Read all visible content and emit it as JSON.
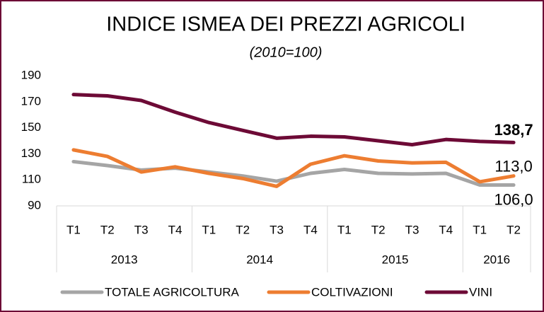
{
  "chart_data": {
    "type": "line",
    "title": "INDICE ISMEA DEI PREZZI AGRICOLI",
    "subtitle": "(2010=100)",
    "categories": [
      "T1",
      "T2",
      "T3",
      "T4",
      "T1",
      "T2",
      "T3",
      "T4",
      "T1",
      "T2",
      "T3",
      "T4",
      "T1",
      "T2"
    ],
    "groups": [
      {
        "label": "2013",
        "span": 4
      },
      {
        "label": "2014",
        "span": 4
      },
      {
        "label": "2015",
        "span": 4
      },
      {
        "label": "2016",
        "span": 2
      }
    ],
    "ylim": [
      90,
      190
    ],
    "yticks": [
      90,
      110,
      130,
      150,
      170,
      190
    ],
    "series": [
      {
        "name": "TOTALE AGRICOLTURA",
        "color": "#a5a5a5",
        "values": [
          124,
          121,
          117.5,
          119,
          116,
          113,
          109,
          115,
          118,
          115,
          114.5,
          115,
          106,
          106
        ],
        "value_labels": [
          null,
          null,
          null,
          null,
          null,
          null,
          null,
          null,
          null,
          null,
          null,
          null,
          null,
          "106,0"
        ]
      },
      {
        "name": "COLTIVAZIONI",
        "color": "#ed7d31",
        "values": [
          133,
          128,
          116,
          120,
          115,
          111,
          105,
          122,
          128.5,
          124.5,
          123,
          123.5,
          108.5,
          113
        ],
        "value_labels": [
          null,
          null,
          null,
          null,
          null,
          null,
          null,
          null,
          null,
          null,
          null,
          null,
          null,
          "113,0"
        ]
      },
      {
        "name": "VINI",
        "color": "#6d0a36",
        "values": [
          175.5,
          174.5,
          171,
          162,
          154,
          148,
          142,
          143.5,
          143,
          140,
          137,
          141,
          139.5,
          138.7
        ],
        "value_labels": [
          null,
          null,
          null,
          null,
          null,
          null,
          null,
          null,
          null,
          null,
          null,
          null,
          null,
          "138,7"
        ]
      }
    ]
  }
}
